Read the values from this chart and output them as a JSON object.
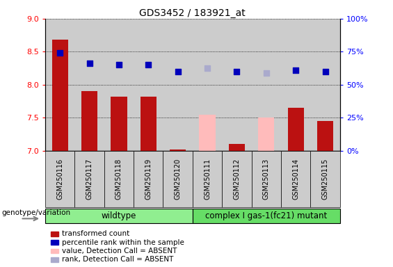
{
  "title": "GDS3452 / 183921_at",
  "samples": [
    "GSM250116",
    "GSM250117",
    "GSM250118",
    "GSM250119",
    "GSM250120",
    "GSM250111",
    "GSM250112",
    "GSM250113",
    "GSM250114",
    "GSM250115"
  ],
  "transformed_count": [
    8.68,
    7.9,
    7.82,
    7.82,
    7.02,
    null,
    7.1,
    null,
    7.65,
    7.45
  ],
  "transformed_count_absent": [
    null,
    null,
    null,
    null,
    null,
    7.55,
    null,
    7.5,
    null,
    null
  ],
  "percentile_rank": [
    8.48,
    8.33,
    8.3,
    8.3,
    8.2,
    null,
    8.2,
    null,
    8.22,
    8.2
  ],
  "percentile_rank_absent": [
    null,
    null,
    null,
    null,
    null,
    8.25,
    null,
    8.18,
    null,
    null
  ],
  "group_labels": [
    "wildtype",
    "complex I gas-1(fc21) mutant"
  ],
  "ylim_left": [
    7.0,
    9.0
  ],
  "ylim_right": [
    0,
    100
  ],
  "yticks_left": [
    7.0,
    7.5,
    8.0,
    8.5,
    9.0
  ],
  "yticks_right": [
    0,
    25,
    50,
    75,
    100
  ],
  "ytick_labels_right": [
    "0%",
    "25%",
    "50%",
    "75%",
    "100%"
  ],
  "bar_color_present": "#bb1111",
  "bar_color_absent": "#ffbbbb",
  "dot_color_present": "#0000bb",
  "dot_color_absent": "#aaaacc",
  "bg_color": "#cccccc",
  "legend_items": [
    {
      "label": "transformed count",
      "color": "#bb1111"
    },
    {
      "label": "percentile rank within the sample",
      "color": "#0000bb"
    },
    {
      "label": "value, Detection Call = ABSENT",
      "color": "#ffbbbb"
    },
    {
      "label": "rank, Detection Call = ABSENT",
      "color": "#aaaacc"
    }
  ],
  "genotype_label": "genotype/variation",
  "wildtype_color": "#90ee90",
  "mutant_color": "#66dd66"
}
